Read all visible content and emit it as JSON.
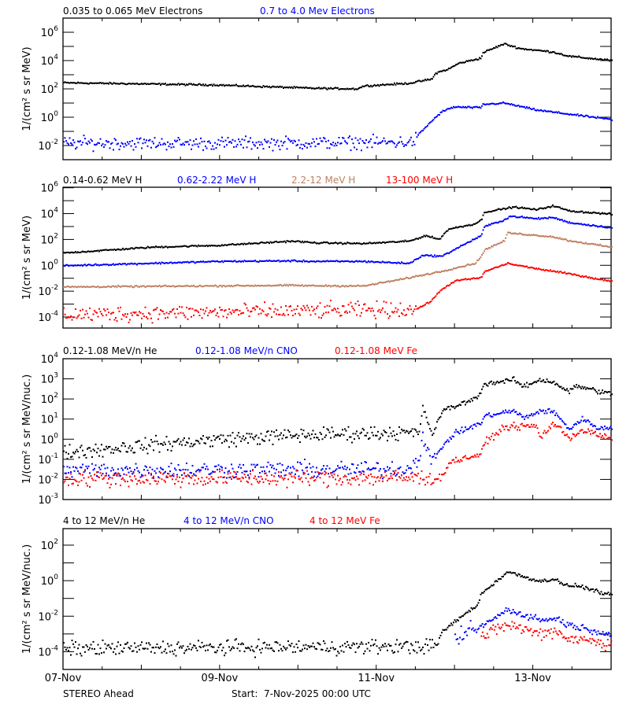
{
  "footer": {
    "mission": "STEREO Ahead",
    "start": "Start:  7-Nov-2025 00:00 UTC"
  },
  "colors": {
    "black": "#000000",
    "blue": "#0000ff",
    "brown": "#c08060",
    "red": "#ff0000"
  },
  "chart_data": [
    {
      "type": "scatter",
      "ylabel": "1/(cm² s sr MeV)",
      "yscale": "log",
      "ylim": [
        0.001,
        10000000.0
      ],
      "ytick_labels": [
        "10^-2",
        "10^0",
        "10^2",
        "10^4",
        "10^6"
      ],
      "xlim": [
        "2025-11-07T00:00",
        "2025-11-14T00:00"
      ],
      "xtick_labels": [
        "07-Nov",
        "09-Nov",
        "11-Nov",
        "13-Nov"
      ],
      "legend_placement": "top",
      "series": [
        {
          "name": "0.035 to 0.065 MeV Electrons",
          "color": "#000000",
          "points": [
            [
              "2025-11-07T00:00",
              270
            ],
            [
              "2025-11-08T22:00",
              190
            ],
            [
              "2025-11-10T05:00",
              110
            ],
            [
              "2025-11-10T18:00",
              100
            ],
            [
              "2025-11-10T20:00",
              160
            ],
            [
              "2025-11-11T10:00",
              250
            ],
            [
              "2025-11-11T17:00",
              500
            ],
            [
              "2025-11-11T18:00",
              1300
            ],
            [
              "2025-11-11T22:00",
              2500
            ],
            [
              "2025-11-12T01:00",
              6300
            ],
            [
              "2025-11-12T08:00",
              15000
            ],
            [
              "2025-11-12T08:30",
              36000
            ],
            [
              "2025-11-12T15:00",
              150000
            ],
            [
              "2025-11-12T20:00",
              70000
            ],
            [
              "2025-11-13T06:00",
              40000
            ],
            [
              "2025-11-13T11:00",
              20000
            ],
            [
              "2025-11-14T00:00",
              10000
            ]
          ]
        },
        {
          "name": "0.7 to 4.0 Mev Electrons",
          "color": "#0000ff",
          "points": [
            [
              "2025-11-07T00:00",
              0.015
            ],
            [
              "2025-11-09T00:00",
              0.014
            ],
            [
              "2025-11-11T11:00",
              0.017
            ],
            [
              "2025-11-11T13:00",
              0.068
            ],
            [
              "2025-11-11T17:00",
              0.6
            ],
            [
              "2025-11-11T20:00",
              2.5
            ],
            [
              "2025-11-11T23:30",
              5.2
            ],
            [
              "2025-11-12T08:00",
              4.7
            ],
            [
              "2025-11-12T08:30",
              7.9
            ],
            [
              "2025-11-12T15:00",
              10
            ],
            [
              "2025-11-13T01:00",
              3.2
            ],
            [
              "2025-11-14T00:00",
              0.68
            ]
          ]
        }
      ]
    },
    {
      "type": "scatter",
      "ylabel": "1/(cm² s sr MeV)",
      "yscale": "log",
      "ylim": [
        1.4e-05,
        1100000.0
      ],
      "ytick_labels": [
        "10^-4",
        "10^-2",
        "10^0",
        "10^2",
        "10^4",
        "10^6"
      ],
      "xlim": [
        "2025-11-07T00:00",
        "2025-11-14T00:00"
      ],
      "legend_placement": "top",
      "series": [
        {
          "name": "0.14-0.62 MeV H",
          "color": "#000000",
          "points": [
            [
              "2025-11-07T00:00",
              8.9
            ],
            [
              "2025-11-08T03:00",
              25
            ],
            [
              "2025-11-09T00:00",
              35
            ],
            [
              "2025-11-09T22:00",
              74
            ],
            [
              "2025-11-10T05:00",
              55
            ],
            [
              "2025-11-10T20:00",
              48
            ],
            [
              "2025-11-11T10:00",
              74
            ],
            [
              "2025-11-11T15:00",
              200
            ],
            [
              "2025-11-11T19:00",
              100
            ],
            [
              "2025-11-11T22:00",
              630
            ],
            [
              "2025-11-12T06:00",
              1600
            ],
            [
              "2025-11-12T08:00",
              3200
            ],
            [
              "2025-11-12T09:00",
              13000
            ],
            [
              "2025-11-12T18:00",
              32000
            ],
            [
              "2025-11-13T01:00",
              20000
            ],
            [
              "2025-11-13T06:00",
              40000
            ],
            [
              "2025-11-13T11:00",
              16000
            ],
            [
              "2025-11-14T00:00",
              9000
            ]
          ]
        },
        {
          "name": "0.62-2.22 MeV H",
          "color": "#0000ff",
          "points": [
            [
              "2025-11-07T00:00",
              0.93
            ],
            [
              "2025-11-09T00:00",
              2.0
            ],
            [
              "2025-11-09T22:00",
              2.2
            ],
            [
              "2025-11-10T05:00",
              2.0
            ],
            [
              "2025-11-10T20:00",
              2.0
            ],
            [
              "2025-11-11T10:00",
              1.4
            ],
            [
              "2025-11-11T14:00",
              5.9
            ],
            [
              "2025-11-11T20:00",
              5
            ],
            [
              "2025-11-12T00:00",
              18
            ],
            [
              "2025-11-12T08:00",
              200
            ],
            [
              "2025-11-12T09:00",
              1000
            ],
            [
              "2025-11-12T15:00",
              3200
            ],
            [
              "2025-11-12T17:00",
              6300
            ],
            [
              "2025-11-13T01:00",
              4000
            ],
            [
              "2025-11-13T06:00",
              5000
            ],
            [
              "2025-11-13T11:00",
              2000
            ],
            [
              "2025-11-14T00:00",
              800
            ]
          ]
        },
        {
          "name": "2.2-12 MeV H",
          "color": "#c08060",
          "points": [
            [
              "2025-11-07T00:00",
              0.021
            ],
            [
              "2025-11-09T22:00",
              0.028
            ],
            [
              "2025-11-10T05:00",
              0.026
            ],
            [
              "2025-11-10T20:00",
              0.025
            ],
            [
              "2025-11-11T08:00",
              0.087
            ],
            [
              "2025-11-11T20:00",
              0.35
            ],
            [
              "2025-11-12T06:00",
              1.4
            ],
            [
              "2025-11-12T08:00",
              4.5
            ],
            [
              "2025-11-12T09:00",
              16
            ],
            [
              "2025-11-12T15:00",
              74
            ],
            [
              "2025-11-12T16:00",
              320
            ],
            [
              "2025-11-13T06:00",
              160
            ],
            [
              "2025-11-13T11:00",
              80
            ],
            [
              "2025-11-14T00:00",
              25
            ]
          ]
        },
        {
          "name": "13-100 MeV H",
          "color": "#ff0000",
          "points": [
            [
              "2025-11-07T00:00",
              0.00015
            ],
            [
              "2025-11-11T12:00",
              0.0004
            ],
            [
              "2025-11-11T16:00",
              0.0013
            ],
            [
              "2025-11-11T20:00",
              0.014
            ],
            [
              "2025-11-12T00:00",
              0.063
            ],
            [
              "2025-11-12T08:00",
              0.11
            ],
            [
              "2025-11-12T09:00",
              0.32
            ],
            [
              "2025-11-12T16:00",
              1.4
            ],
            [
              "2025-11-13T01:00",
              0.54
            ],
            [
              "2025-11-13T11:00",
              0.22
            ],
            [
              "2025-11-14T00:00",
              0.056
            ]
          ]
        }
      ]
    },
    {
      "type": "scatter",
      "ylabel": "1/(cm² s sr MeV/nuc.)",
      "yscale": "log",
      "ylim": [
        0.001,
        10000.0
      ],
      "ytick_labels": [
        "10^-3",
        "10^-2",
        "10^-1",
        "10^0",
        "10^1",
        "10^2",
        "10^3",
        "10^4"
      ],
      "xlim": [
        "2025-11-07T00:00",
        "2025-11-14T00:00"
      ],
      "legend_placement": "top",
      "series": [
        {
          "name": "0.12-1.08 MeV/n He",
          "color": "#000000",
          "points": [
            [
              "2025-11-07T00:00",
              0.22
            ],
            [
              "2025-11-08T05:00",
              0.55
            ],
            [
              "2025-11-09T01:00",
              1.0
            ],
            [
              "2025-11-10T02:00",
              1.6
            ],
            [
              "2025-11-11T04:00",
              2.1
            ],
            [
              "2025-11-11T13:00",
              2.0
            ],
            [
              "2025-11-11T14:00",
              40
            ],
            [
              "2025-11-11T17:00",
              1.6
            ],
            [
              "2025-11-11T20:00",
              25
            ],
            [
              "2025-11-12T06:00",
              100
            ],
            [
              "2025-11-12T08:00",
              250
            ],
            [
              "2025-11-12T09:00",
              560
            ],
            [
              "2025-11-12T18:00",
              890
            ],
            [
              "2025-11-12T21:00",
              400
            ],
            [
              "2025-11-13T02:00",
              900
            ],
            [
              "2025-11-13T06:00",
              700
            ],
            [
              "2025-11-13T11:00",
              220
            ],
            [
              "2025-11-13T13:00",
              450
            ],
            [
              "2025-11-14T00:00",
              170
            ]
          ]
        },
        {
          "name": "0.12-1.08 MeV/n CNO",
          "color": "#0000ff",
          "points": [
            [
              "2025-11-07T00:00",
              0.028
            ],
            [
              "2025-11-11T10:00",
              0.032
            ],
            [
              "2025-11-11T13:00",
              0.15
            ],
            [
              "2025-11-11T14:00",
              1.6
            ],
            [
              "2025-11-11T17:00",
              0.063
            ],
            [
              "2025-11-11T20:00",
              0.45
            ],
            [
              "2025-11-12T00:00",
              2.0
            ],
            [
              "2025-11-12T08:00",
              6.3
            ],
            [
              "2025-11-12T09:00",
              14
            ],
            [
              "2025-11-12T18:00",
              26
            ],
            [
              "2025-11-12T21:00",
              11
            ],
            [
              "2025-11-13T02:00",
              25
            ],
            [
              "2025-11-13T06:00",
              24
            ],
            [
              "2025-11-13T11:00",
              3.2
            ],
            [
              "2025-11-13T15:00",
              10
            ],
            [
              "2025-11-13T20:00",
              3.5
            ],
            [
              "2025-11-14T00:00",
              3.5
            ]
          ]
        },
        {
          "name": "0.12-1.08 MeV Fe",
          "color": "#ff0000",
          "points": [
            [
              "2025-11-07T00:00",
              0.011
            ],
            [
              "2025-11-11T20:00",
              0.012
            ],
            [
              "2025-11-11T22:00",
              0.07
            ],
            [
              "2025-11-12T08:00",
              0.18
            ],
            [
              "2025-11-12T09:00",
              0.63
            ],
            [
              "2025-11-12T15:00",
              4
            ],
            [
              "2025-11-13T01:00",
              4.5
            ],
            [
              "2025-11-13T02:00",
              1.1
            ],
            [
              "2025-11-13T06:00",
              6.3
            ],
            [
              "2025-11-13T11:00",
              1.2
            ],
            [
              "2025-11-13T15:00",
              2.8
            ],
            [
              "2025-11-14T00:00",
              1.0
            ]
          ]
        }
      ]
    },
    {
      "type": "scatter",
      "ylabel": "1/(cm² s sr MeV/nuc.)",
      "yscale": "log",
      "ylim": [
        1e-05,
        850.0
      ],
      "ytick_labels": [
        "10^-4",
        "10^-2",
        "10^0",
        "10^2"
      ],
      "xlim": [
        "2025-11-07T00:00",
        "2025-11-14T00:00"
      ],
      "legend_placement": "top",
      "series": [
        {
          "name": "4 to 12 MeV/n He",
          "color": "#000000",
          "points": [
            [
              "2025-11-07T00:00",
              0.00015
            ],
            [
              "2025-11-11T18:00",
              0.0002
            ],
            [
              "2025-11-11T20:00",
              0.0013
            ],
            [
              "2025-11-12T00:00",
              0.005
            ],
            [
              "2025-11-12T07:00",
              0.047
            ],
            [
              "2025-11-12T08:00",
              0.18
            ],
            [
              "2025-11-12T16:00",
              3.1
            ],
            [
              "2025-11-12T21:00",
              1.7
            ],
            [
              "2025-11-13T02:00",
              0.9
            ],
            [
              "2025-11-13T07:00",
              1.3
            ],
            [
              "2025-11-13T09:00",
              0.54
            ],
            [
              "2025-11-13T14:00",
              0.5
            ],
            [
              "2025-11-14T00:00",
              0.14
            ]
          ]
        },
        {
          "name": "4 to 12 MeV/n CNO",
          "color": "#0000ff",
          "points": [
            [
              "2025-11-12T00:00",
              0.0005
            ],
            [
              "2025-11-12T08:00",
              0.0025
            ],
            [
              "2025-11-12T16:00",
              0.023
            ],
            [
              "2025-11-13T02:00",
              0.0063
            ],
            [
              "2025-11-13T08:00",
              0.007
            ],
            [
              "2025-11-13T10:00",
              0.0035
            ],
            [
              "2025-11-14T00:00",
              0.0009
            ]
          ]
        },
        {
          "name": "4 to 12 MeV Fe",
          "color": "#ff0000",
          "points": [
            [
              "2025-11-12T08:00",
              0.0006
            ],
            [
              "2025-11-12T16:00",
              0.0035
            ],
            [
              "2025-11-13T02:00",
              0.001
            ],
            [
              "2025-11-13T07:00",
              0.0016
            ],
            [
              "2025-11-13T10:00",
              0.0006
            ],
            [
              "2025-11-14T00:00",
              0.00028
            ]
          ]
        }
      ]
    }
  ]
}
